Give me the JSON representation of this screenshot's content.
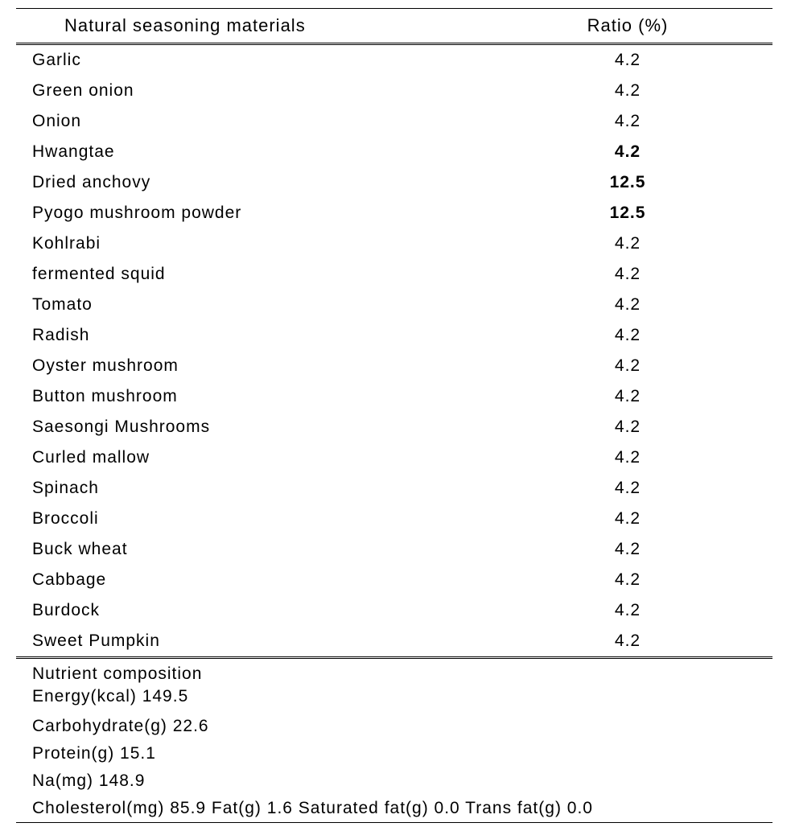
{
  "table": {
    "header_material": "Natural  seasoning  materials",
    "header_ratio": "Ratio  (%)",
    "highlight_color": "#e46c0a",
    "text_color": "#000000",
    "font_size_header": 22,
    "font_size_body": 21,
    "rows": [
      {
        "material": "Garlic",
        "ratio": "4.2",
        "highlight": false
      },
      {
        "material": "Green  onion",
        "ratio": "4.2",
        "highlight": false
      },
      {
        "material": "Onion",
        "ratio": "4.2",
        "highlight": false
      },
      {
        "material": "Hwangtae",
        "ratio": "4.2",
        "highlight": true
      },
      {
        "material": "Dried  anchovy",
        "ratio": "12.5",
        "highlight": true
      },
      {
        "material": "Pyogo  mushroom  powder",
        "ratio": "12.5",
        "highlight": true
      },
      {
        "material": "Kohlrabi",
        "ratio": "4.2",
        "highlight": false
      },
      {
        "material": "fermented  squid",
        "ratio": "4.2",
        "highlight": false
      },
      {
        "material": "Tomato",
        "ratio": "4.2",
        "highlight": false
      },
      {
        "material": "Radish",
        "ratio": "4.2",
        "highlight": false
      },
      {
        "material": "Oyster  mushroom",
        "ratio": "4.2",
        "highlight": false
      },
      {
        "material": "Button  mushroom",
        "ratio": "4.2",
        "highlight": false
      },
      {
        "material": "Saesongi  Mushrooms",
        "ratio": "4.2",
        "highlight": false
      },
      {
        "material": "Curled  mallow",
        "ratio": "4.2",
        "highlight": false
      },
      {
        "material": "Spinach",
        "ratio": "4.2",
        "highlight": false
      },
      {
        "material": "Broccoli",
        "ratio": "4.2",
        "highlight": false
      },
      {
        "material": "Buck  wheat",
        "ratio": "4.2",
        "highlight": false
      },
      {
        "material": "Cabbage",
        "ratio": "4.2",
        "highlight": false
      },
      {
        "material": "Burdock",
        "ratio": "4.2",
        "highlight": false
      },
      {
        "material": "Sweet  Pumpkin",
        "ratio": "4.2",
        "highlight": false
      }
    ],
    "nutrient_lines": [
      "Nutrient  composition",
      "Energy(kcal)   149.5",
      "Carbohydrate(g)   22.6",
      "Protein(g)  15.1",
      "Na(mg)  148.9",
      "Cholesterol(mg)  85.9  Fat(g)   1.6  Saturated  fat(g)   0.0  Trans  fat(g)   0.0"
    ]
  }
}
